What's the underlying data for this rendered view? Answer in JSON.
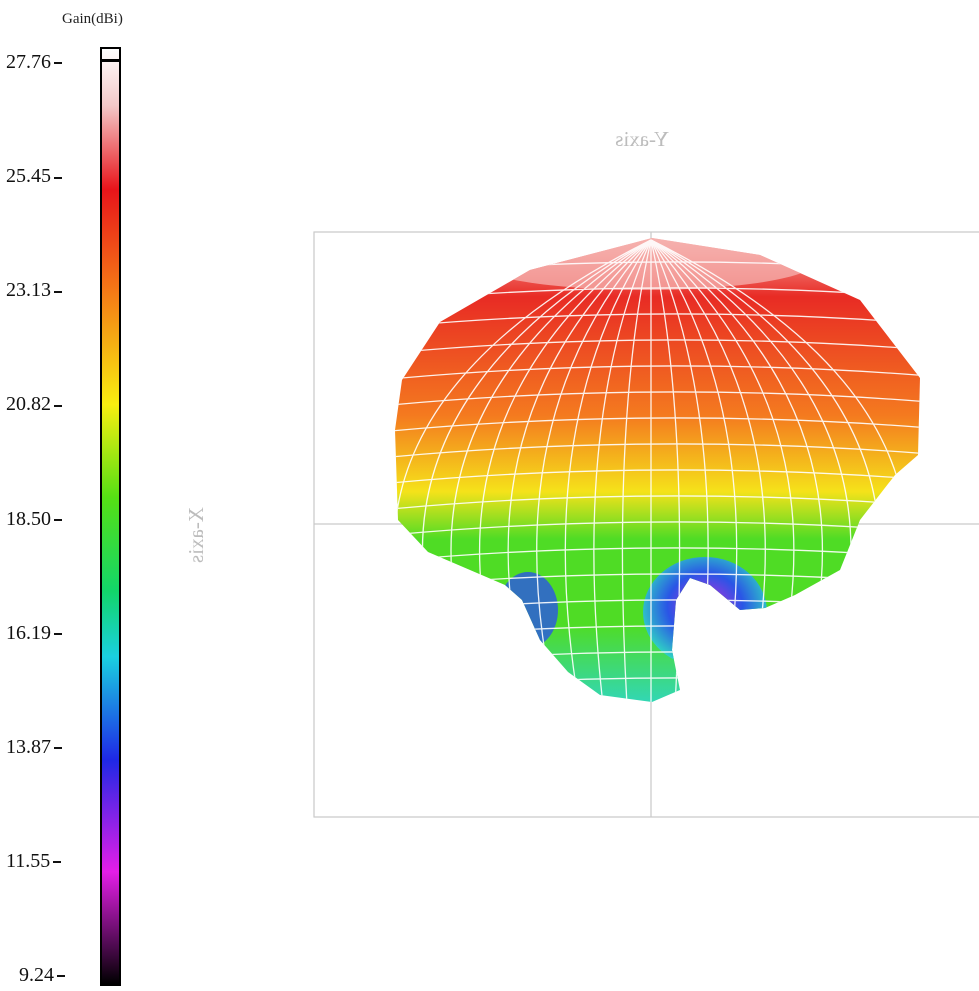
{
  "colorbar": {
    "title": "Gain(dBi)",
    "ticks": [
      "27.76",
      "25.45",
      "23.13",
      "20.82",
      "18.50",
      "16.19",
      "13.87",
      "11.55",
      "9.24"
    ],
    "stops": [
      {
        "offset": 0.0,
        "color": "#ffffff"
      },
      {
        "offset": 0.06,
        "color": "#f3c9c9"
      },
      {
        "offset": 0.15,
        "color": "#e8141a"
      },
      {
        "offset": 0.26,
        "color": "#f57a16"
      },
      {
        "offset": 0.38,
        "color": "#f8ee10"
      },
      {
        "offset": 0.48,
        "color": "#55e014"
      },
      {
        "offset": 0.58,
        "color": "#12d66a"
      },
      {
        "offset": 0.65,
        "color": "#1ad0e0"
      },
      {
        "offset": 0.76,
        "color": "#1e28e6"
      },
      {
        "offset": 0.88,
        "color": "#e41ee8"
      },
      {
        "offset": 1.0,
        "color": "#000000"
      }
    ]
  },
  "axes": {
    "y_label": "Y-axis",
    "x_label": "X-axis"
  },
  "pattern_colors": {
    "top": "#f6b3b0",
    "upper": "#e82b24",
    "middle": "#f47a1f",
    "yellow": "#f5e21a",
    "green": "#4fdc25",
    "cyan": "#2fd6c3",
    "blue": "#2a55e6",
    "magenta": "#c82ad8",
    "mesh": "#ffffff"
  }
}
